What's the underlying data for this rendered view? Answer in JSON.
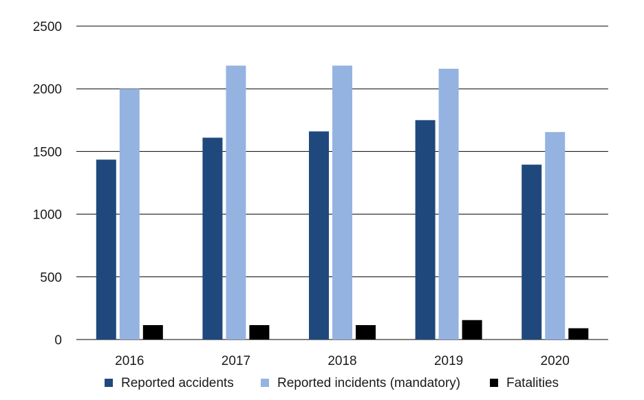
{
  "chart_data": {
    "type": "bar",
    "title": "",
    "xlabel": "",
    "ylabel": "",
    "categories": [
      "2016",
      "2017",
      "2018",
      "2019",
      "2020"
    ],
    "ylim": [
      0,
      2500
    ],
    "yticks": [
      "0",
      "500",
      "1000",
      "1500",
      "2000",
      "2500"
    ],
    "grid": true,
    "legend_position": "bottom",
    "series": [
      {
        "name": "Reported accidents",
        "color": "#1f497d",
        "values": [
          1435,
          1610,
          1660,
          1750,
          1395
        ]
      },
      {
        "name": "Reported incidents (mandatory)",
        "color": "#95b3e1",
        "values": [
          2000,
          2185,
          2185,
          2160,
          1655
        ]
      },
      {
        "name": "Fatalities",
        "color": "#000000",
        "values": [
          115,
          115,
          115,
          155,
          90
        ]
      }
    ]
  }
}
